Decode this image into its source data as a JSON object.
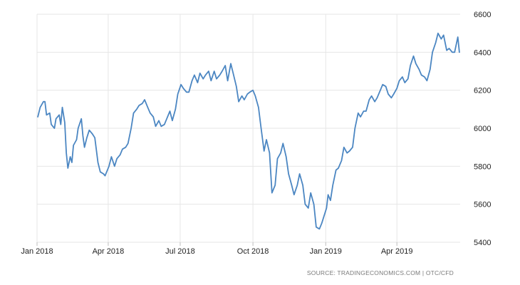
{
  "footer": {
    "source": "SOURCE: TRADINGECONOMICS.COM | OTC/CFD"
  },
  "colors": {
    "line": "#4b86c2",
    "grid": "#e6e6e6",
    "text": "#222222",
    "source_text": "#7a7a7a"
  },
  "chart_data": {
    "type": "line",
    "title": "",
    "xlabel": "",
    "ylabel": "",
    "grid": "on (vertical and horizontal)",
    "y_axis_side": "right",
    "xlim": [
      "2018-01-01",
      "2019-06-20"
    ],
    "ylim": [
      5400,
      6600
    ],
    "x_ticks": [
      {
        "date": "2018-01-01",
        "label": "Jan 2018"
      },
      {
        "date": "2018-04-01",
        "label": "Apr 2018"
      },
      {
        "date": "2018-07-01",
        "label": "Jul 2018"
      },
      {
        "date": "2018-10-01",
        "label": "Oct 2018"
      },
      {
        "date": "2019-01-01",
        "label": "Jan 2019"
      },
      {
        "date": "2019-04-01",
        "label": "Apr 2019"
      }
    ],
    "y_ticks": [
      {
        "value": 5400,
        "label": "5400"
      },
      {
        "value": 5600,
        "label": "5600"
      },
      {
        "value": 5800,
        "label": "5800"
      },
      {
        "value": 6000,
        "label": "6000"
      },
      {
        "value": 6200,
        "label": "6200"
      },
      {
        "value": 6400,
        "label": "6400"
      },
      {
        "value": 6600,
        "label": "6600"
      }
    ],
    "series": [
      {
        "points": [
          [
            "2018-01-02",
            6060
          ],
          [
            "2018-01-05",
            6110
          ],
          [
            "2018-01-09",
            6140
          ],
          [
            "2018-01-11",
            6140
          ],
          [
            "2018-01-13",
            6070
          ],
          [
            "2018-01-17",
            6080
          ],
          [
            "2018-01-19",
            6020
          ],
          [
            "2018-01-23",
            6000
          ],
          [
            "2018-01-25",
            6050
          ],
          [
            "2018-01-29",
            6070
          ],
          [
            "2018-01-31",
            6020
          ],
          [
            "2018-02-02",
            6110
          ],
          [
            "2018-02-05",
            6030
          ],
          [
            "2018-02-07",
            5870
          ],
          [
            "2018-02-09",
            5790
          ],
          [
            "2018-02-12",
            5850
          ],
          [
            "2018-02-14",
            5820
          ],
          [
            "2018-02-16",
            5910
          ],
          [
            "2018-02-20",
            5940
          ],
          [
            "2018-02-22",
            6000
          ],
          [
            "2018-02-26",
            6050
          ],
          [
            "2018-02-28",
            5960
          ],
          [
            "2018-03-02",
            5900
          ],
          [
            "2018-03-05",
            5950
          ],
          [
            "2018-03-08",
            5990
          ],
          [
            "2018-03-12",
            5970
          ],
          [
            "2018-03-15",
            5950
          ],
          [
            "2018-03-19",
            5820
          ],
          [
            "2018-03-22",
            5770
          ],
          [
            "2018-03-26",
            5760
          ],
          [
            "2018-03-28",
            5750
          ],
          [
            "2018-04-02",
            5800
          ],
          [
            "2018-04-05",
            5850
          ],
          [
            "2018-04-09",
            5800
          ],
          [
            "2018-04-12",
            5840
          ],
          [
            "2018-04-16",
            5860
          ],
          [
            "2018-04-19",
            5890
          ],
          [
            "2018-04-23",
            5900
          ],
          [
            "2018-04-26",
            5920
          ],
          [
            "2018-04-30",
            6000
          ],
          [
            "2018-05-03",
            6080
          ],
          [
            "2018-05-07",
            6100
          ],
          [
            "2018-05-10",
            6120
          ],
          [
            "2018-05-14",
            6130
          ],
          [
            "2018-05-17",
            6150
          ],
          [
            "2018-05-21",
            6110
          ],
          [
            "2018-05-24",
            6080
          ],
          [
            "2018-05-28",
            6060
          ],
          [
            "2018-05-31",
            6010
          ],
          [
            "2018-06-04",
            6040
          ],
          [
            "2018-06-07",
            6010
          ],
          [
            "2018-06-11",
            6020
          ],
          [
            "2018-06-14",
            6050
          ],
          [
            "2018-06-18",
            6090
          ],
          [
            "2018-06-21",
            6040
          ],
          [
            "2018-06-25",
            6100
          ],
          [
            "2018-06-28",
            6180
          ],
          [
            "2018-07-02",
            6230
          ],
          [
            "2018-07-05",
            6210
          ],
          [
            "2018-07-09",
            6190
          ],
          [
            "2018-07-12",
            6190
          ],
          [
            "2018-07-16",
            6250
          ],
          [
            "2018-07-19",
            6280
          ],
          [
            "2018-07-23",
            6240
          ],
          [
            "2018-07-26",
            6290
          ],
          [
            "2018-07-30",
            6260
          ],
          [
            "2018-08-02",
            6280
          ],
          [
            "2018-08-06",
            6300
          ],
          [
            "2018-08-09",
            6250
          ],
          [
            "2018-08-13",
            6300
          ],
          [
            "2018-08-16",
            6260
          ],
          [
            "2018-08-20",
            6280
          ],
          [
            "2018-08-23",
            6300
          ],
          [
            "2018-08-27",
            6330
          ],
          [
            "2018-08-30",
            6250
          ],
          [
            "2018-09-03",
            6340
          ],
          [
            "2018-09-06",
            6290
          ],
          [
            "2018-09-10",
            6220
          ],
          [
            "2018-09-13",
            6140
          ],
          [
            "2018-09-17",
            6170
          ],
          [
            "2018-09-20",
            6150
          ],
          [
            "2018-09-24",
            6180
          ],
          [
            "2018-09-27",
            6190
          ],
          [
            "2018-10-01",
            6200
          ],
          [
            "2018-10-04",
            6170
          ],
          [
            "2018-10-08",
            6110
          ],
          [
            "2018-10-11",
            6010
          ],
          [
            "2018-10-15",
            5880
          ],
          [
            "2018-10-18",
            5940
          ],
          [
            "2018-10-22",
            5870
          ],
          [
            "2018-10-25",
            5660
          ],
          [
            "2018-10-29",
            5700
          ],
          [
            "2018-11-01",
            5840
          ],
          [
            "2018-11-05",
            5870
          ],
          [
            "2018-11-08",
            5920
          ],
          [
            "2018-11-12",
            5850
          ],
          [
            "2018-11-15",
            5760
          ],
          [
            "2018-11-19",
            5700
          ],
          [
            "2018-11-22",
            5650
          ],
          [
            "2018-11-26",
            5700
          ],
          [
            "2018-11-29",
            5760
          ],
          [
            "2018-12-03",
            5700
          ],
          [
            "2018-12-06",
            5600
          ],
          [
            "2018-12-10",
            5580
          ],
          [
            "2018-12-13",
            5660
          ],
          [
            "2018-12-17",
            5600
          ],
          [
            "2018-12-20",
            5480
          ],
          [
            "2018-12-24",
            5470
          ],
          [
            "2018-12-27",
            5500
          ],
          [
            "2019-01-02",
            5580
          ],
          [
            "2019-01-04",
            5650
          ],
          [
            "2019-01-07",
            5620
          ],
          [
            "2019-01-10",
            5700
          ],
          [
            "2019-01-14",
            5780
          ],
          [
            "2019-01-17",
            5790
          ],
          [
            "2019-01-21",
            5830
          ],
          [
            "2019-01-24",
            5900
          ],
          [
            "2019-01-28",
            5870
          ],
          [
            "2019-01-31",
            5880
          ],
          [
            "2019-02-04",
            5900
          ],
          [
            "2019-02-07",
            6000
          ],
          [
            "2019-02-11",
            6080
          ],
          [
            "2019-02-14",
            6060
          ],
          [
            "2019-02-18",
            6090
          ],
          [
            "2019-02-21",
            6090
          ],
          [
            "2019-02-25",
            6150
          ],
          [
            "2019-02-28",
            6170
          ],
          [
            "2019-03-04",
            6140
          ],
          [
            "2019-03-07",
            6160
          ],
          [
            "2019-03-11",
            6200
          ],
          [
            "2019-03-14",
            6230
          ],
          [
            "2019-03-18",
            6220
          ],
          [
            "2019-03-21",
            6180
          ],
          [
            "2019-03-25",
            6160
          ],
          [
            "2019-03-28",
            6180
          ],
          [
            "2019-04-01",
            6210
          ],
          [
            "2019-04-04",
            6250
          ],
          [
            "2019-04-08",
            6270
          ],
          [
            "2019-04-11",
            6240
          ],
          [
            "2019-04-15",
            6260
          ],
          [
            "2019-04-18",
            6330
          ],
          [
            "2019-04-22",
            6380
          ],
          [
            "2019-04-25",
            6340
          ],
          [
            "2019-04-29",
            6310
          ],
          [
            "2019-05-02",
            6280
          ],
          [
            "2019-05-06",
            6270
          ],
          [
            "2019-05-09",
            6250
          ],
          [
            "2019-05-13",
            6310
          ],
          [
            "2019-05-16",
            6400
          ],
          [
            "2019-05-20",
            6450
          ],
          [
            "2019-05-23",
            6500
          ],
          [
            "2019-05-27",
            6470
          ],
          [
            "2019-05-30",
            6490
          ],
          [
            "2019-06-03",
            6410
          ],
          [
            "2019-06-06",
            6420
          ],
          [
            "2019-06-10",
            6400
          ],
          [
            "2019-06-13",
            6400
          ],
          [
            "2019-06-17",
            6480
          ],
          [
            "2019-06-19",
            6400
          ]
        ]
      }
    ]
  }
}
